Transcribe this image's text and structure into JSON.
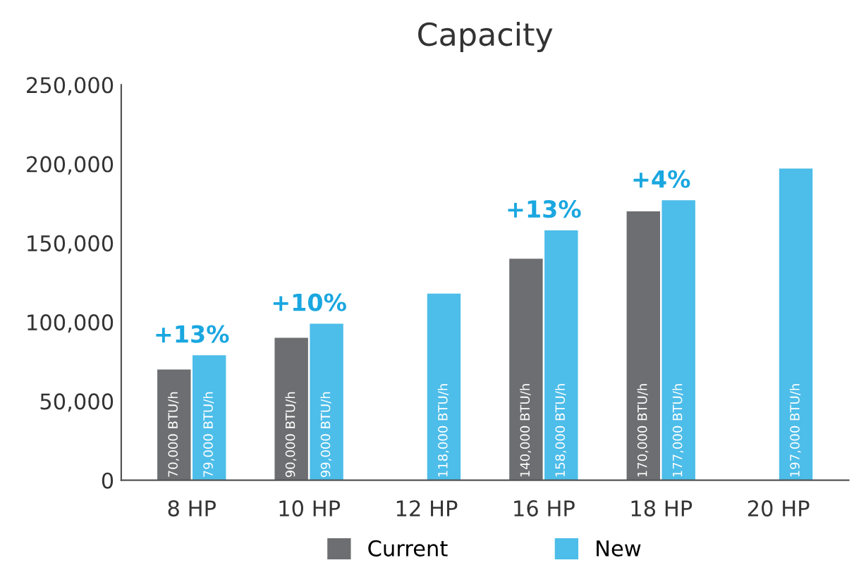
{
  "chart_data": {
    "type": "bar",
    "title": "Capacity",
    "categories": [
      "8 HP",
      "10 HP",
      "12 HP",
      "16 HP",
      "18 HP",
      "20 HP"
    ],
    "series": [
      {
        "name": "Current",
        "color": "#6d6e71",
        "values": [
          70000,
          90000,
          null,
          140000,
          170000,
          null
        ],
        "value_labels": [
          "70,000 BTU/h",
          "90,000 BTU/h",
          null,
          "140,000 BTU/h",
          "170,000 BTU/h",
          null
        ]
      },
      {
        "name": "New",
        "color": "#4dbde9",
        "values": [
          79000,
          99000,
          118000,
          158000,
          177000,
          197000
        ],
        "value_labels": [
          "79,000 BTU/h",
          "99,000 BTU/h",
          "118,000 BTU/h",
          "158,000 BTU/h",
          "177,000 BTU/h",
          "197,000 BTU/h"
        ]
      }
    ],
    "ylim": [
      0,
      250000
    ],
    "yticks": [
      0,
      {
        "value": 50000,
        "label": "50,000"
      },
      {
        "value": 100000,
        "label": "100,000"
      },
      {
        "value": 150000,
        "label": "150,000"
      },
      {
        "value": 200000,
        "label": "200,000"
      },
      {
        "value": 250000,
        "label": "250,000"
      }
    ],
    "annotations": [
      {
        "text": "+13%",
        "x": "8 HP",
        "y": 79000
      },
      {
        "text": "+10%",
        "x": "10 HP",
        "y": 99000
      },
      {
        "text": "+13%",
        "x": "16 HP",
        "y": 158000
      },
      {
        "text": "+4%",
        "x": "18 HP",
        "y": 177000
      }
    ],
    "grid": false,
    "legend": "bottom"
  }
}
